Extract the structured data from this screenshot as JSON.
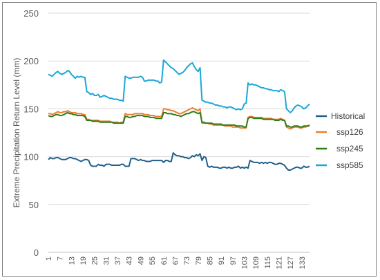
{
  "chart_data": {
    "type": "line",
    "title": "",
    "xlabel": "",
    "ylabel": "Extreme Precipitation Return Level (mm)",
    "ylim": [
      0,
      250
    ],
    "yticks": [
      "0",
      "50",
      "100",
      "150",
      "200",
      "250"
    ],
    "xticks": [
      "1",
      "7",
      "13",
      "19",
      "25",
      "31",
      "37",
      "43",
      "49",
      "55",
      "61",
      "67",
      "73",
      "79",
      "85",
      "91",
      "97",
      "103",
      "109",
      "115",
      "121",
      "127",
      "133"
    ],
    "grid": "horizontal",
    "legend_position": "right",
    "x_start": 1,
    "series": [
      {
        "name": "Historical",
        "color": "#1f5f8b",
        "values": [
          97,
          99,
          98,
          98,
          99,
          99,
          98,
          97,
          97,
          97,
          98,
          99,
          99,
          98,
          98,
          97,
          96,
          95,
          96,
          97,
          97,
          96,
          91,
          90,
          90,
          90,
          92,
          91,
          91,
          90,
          92,
          92,
          92,
          91,
          91,
          91,
          91,
          91,
          92,
          92,
          90,
          90,
          90,
          98,
          98,
          98,
          97,
          96,
          97,
          96,
          96,
          95,
          95,
          95,
          96,
          96,
          96,
          96,
          96,
          96,
          94,
          96,
          96,
          95,
          95,
          104,
          102,
          101,
          101,
          100,
          100,
          99,
          99,
          98,
          99,
          101,
          100,
          102,
          101,
          103,
          96,
          100,
          99,
          90,
          89,
          90,
          89,
          89,
          89,
          88,
          88,
          89,
          89,
          88,
          89,
          88,
          88,
          89,
          89,
          90,
          88,
          89,
          88,
          89,
          88,
          96,
          95,
          94,
          94,
          94,
          93,
          94,
          93,
          94,
          93,
          94,
          94,
          93,
          92,
          92,
          93,
          93,
          92,
          91,
          88,
          86,
          86,
          87,
          88,
          89,
          89,
          88,
          88,
          90,
          89,
          89,
          90
        ]
      },
      {
        "name": "ssp126",
        "color": "#ed7d31",
        "values": [
          145,
          145,
          144,
          145,
          146,
          147,
          146,
          146,
          147,
          147,
          148,
          147,
          146,
          146,
          146,
          145,
          145,
          145,
          144,
          144,
          139,
          139,
          138,
          138,
          138,
          138,
          138,
          137,
          137,
          137,
          137,
          137,
          137,
          136,
          136,
          136,
          136,
          135,
          136,
          136,
          145,
          144,
          144,
          144,
          144,
          145,
          145,
          145,
          145,
          145,
          144,
          144,
          144,
          143,
          143,
          143,
          142,
          142,
          142,
          142,
          150,
          150,
          149,
          149,
          148,
          148,
          147,
          146,
          145,
          145,
          146,
          147,
          148,
          149,
          150,
          151,
          150,
          149,
          148,
          150,
          135,
          135,
          135,
          135,
          134,
          134,
          133,
          133,
          133,
          133,
          133,
          133,
          132,
          132,
          132,
          132,
          131,
          131,
          131,
          131,
          130,
          130,
          130,
          130,
          141,
          142,
          142,
          141,
          141,
          141,
          141,
          141,
          140,
          140,
          140,
          140,
          140,
          139,
          139,
          139,
          139,
          140,
          139,
          138,
          131,
          130,
          129,
          130,
          131,
          131,
          131,
          130,
          130,
          131,
          131,
          132,
          132
        ]
      },
      {
        "name": "ssp245",
        "color": "#2e7d17",
        "values": [
          143,
          142,
          142,
          143,
          144,
          144,
          143,
          143,
          144,
          145,
          146,
          145,
          145,
          144,
          144,
          143,
          143,
          143,
          143,
          142,
          138,
          138,
          138,
          137,
          137,
          137,
          137,
          136,
          136,
          136,
          136,
          136,
          136,
          136,
          135,
          135,
          135,
          135,
          135,
          135,
          142,
          142,
          141,
          141,
          142,
          142,
          143,
          143,
          143,
          143,
          142,
          142,
          142,
          141,
          141,
          141,
          140,
          140,
          140,
          140,
          146,
          146,
          145,
          145,
          145,
          144,
          144,
          143,
          143,
          142,
          143,
          144,
          145,
          145,
          146,
          147,
          147,
          146,
          145,
          146,
          136,
          136,
          135,
          135,
          135,
          135,
          134,
          134,
          134,
          134,
          134,
          133,
          133,
          133,
          133,
          133,
          133,
          133,
          132,
          132,
          132,
          132,
          131,
          131,
          140,
          141,
          141,
          140,
          140,
          140,
          140,
          140,
          139,
          139,
          139,
          139,
          139,
          139,
          138,
          138,
          138,
          139,
          138,
          138,
          132,
          132,
          131,
          131,
          132,
          132,
          132,
          131,
          131,
          132,
          132,
          132,
          133
        ]
      },
      {
        "name": "ssp585",
        "color": "#1aa7d8",
        "values": [
          186,
          185,
          184,
          186,
          188,
          189,
          187,
          186,
          187,
          188,
          190,
          189,
          186,
          184,
          182,
          184,
          183,
          184,
          183,
          183,
          168,
          167,
          165,
          166,
          164,
          164,
          165,
          162,
          163,
          164,
          163,
          162,
          161,
          161,
          160,
          160,
          160,
          159,
          159,
          158,
          184,
          183,
          182,
          182,
          183,
          183,
          183,
          183,
          184,
          183,
          179,
          179,
          180,
          180,
          180,
          180,
          179,
          179,
          177,
          178,
          201,
          199,
          197,
          195,
          193,
          192,
          190,
          188,
          186,
          187,
          188,
          190,
          193,
          195,
          197,
          198,
          194,
          191,
          189,
          193,
          159,
          158,
          157,
          157,
          156,
          156,
          155,
          154,
          154,
          153,
          153,
          152,
          152,
          151,
          152,
          152,
          151,
          150,
          149,
          150,
          149,
          150,
          155,
          156,
          177,
          175,
          176,
          175,
          175,
          174,
          173,
          172,
          172,
          171,
          171,
          170,
          170,
          169,
          169,
          169,
          168,
          170,
          169,
          168,
          150,
          148,
          146,
          148,
          151,
          153,
          154,
          153,
          152,
          150,
          151,
          153,
          155
        ]
      }
    ]
  }
}
